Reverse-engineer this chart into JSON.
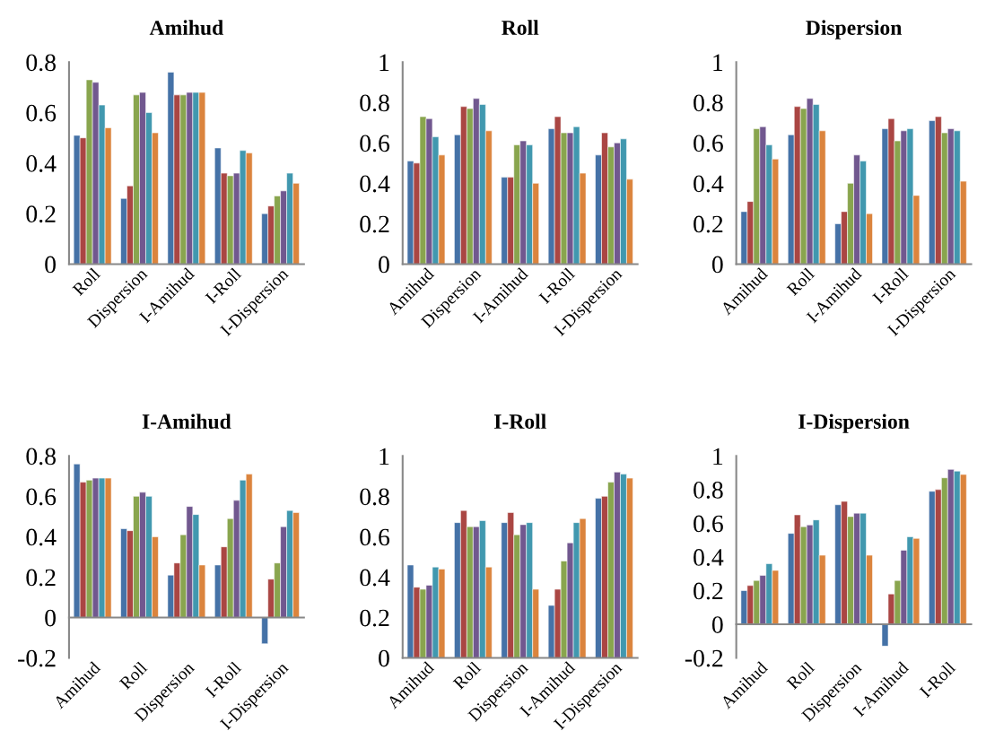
{
  "chart_data": [
    {
      "type": "bar",
      "title": "Amihud",
      "categories": [
        "Roll",
        "Dispersion",
        "I-Amihud",
        "I-Roll",
        "I-Dispersion"
      ],
      "ylim": [
        0,
        0.8
      ],
      "yticks": [
        0,
        0.2,
        0.4,
        0.6,
        0.8
      ],
      "grid": false,
      "series": [
        {
          "color": "#4572a7",
          "values": [
            0.51,
            0.26,
            0.76,
            0.46,
            0.2
          ]
        },
        {
          "color": "#aa4643",
          "values": [
            0.5,
            0.31,
            0.67,
            0.36,
            0.23
          ]
        },
        {
          "color": "#89a54e",
          "values": [
            0.73,
            0.67,
            0.67,
            0.35,
            0.27
          ]
        },
        {
          "color": "#71588f",
          "values": [
            0.72,
            0.68,
            0.68,
            0.36,
            0.29
          ]
        },
        {
          "color": "#4198af",
          "values": [
            0.63,
            0.6,
            0.68,
            0.45,
            0.36
          ]
        },
        {
          "color": "#db843d",
          "values": [
            0.54,
            0.52,
            0.68,
            0.44,
            0.32
          ]
        }
      ]
    },
    {
      "type": "bar",
      "title": "Roll",
      "categories": [
        "Amihud",
        "Dispersion",
        "I-Amihud",
        "I-Roll",
        "I-Dispersion"
      ],
      "ylim": [
        0,
        1
      ],
      "yticks": [
        0,
        0.2,
        0.4,
        0.6,
        0.8,
        1
      ],
      "grid": false,
      "series": [
        {
          "color": "#4572a7",
          "values": [
            0.51,
            0.64,
            0.43,
            0.67,
            0.54
          ]
        },
        {
          "color": "#aa4643",
          "values": [
            0.5,
            0.78,
            0.43,
            0.73,
            0.65
          ]
        },
        {
          "color": "#89a54e",
          "values": [
            0.73,
            0.77,
            0.59,
            0.65,
            0.58
          ]
        },
        {
          "color": "#71588f",
          "values": [
            0.72,
            0.82,
            0.61,
            0.65,
            0.6
          ]
        },
        {
          "color": "#4198af",
          "values": [
            0.63,
            0.79,
            0.59,
            0.68,
            0.62
          ]
        },
        {
          "color": "#db843d",
          "values": [
            0.54,
            0.66,
            0.4,
            0.45,
            0.42
          ]
        }
      ]
    },
    {
      "type": "bar",
      "title": "Dispersion",
      "categories": [
        "Amihud",
        "Roll",
        "I-Amihud",
        "I-Roll",
        "I-Dispersion"
      ],
      "ylim": [
        0,
        1
      ],
      "yticks": [
        0,
        0.2,
        0.4,
        0.6,
        0.8,
        1
      ],
      "grid": false,
      "series": [
        {
          "color": "#4572a7",
          "values": [
            0.26,
            0.64,
            0.2,
            0.67,
            0.71
          ]
        },
        {
          "color": "#aa4643",
          "values": [
            0.31,
            0.78,
            0.26,
            0.72,
            0.73
          ]
        },
        {
          "color": "#89a54e",
          "values": [
            0.67,
            0.77,
            0.4,
            0.61,
            0.65
          ]
        },
        {
          "color": "#71588f",
          "values": [
            0.68,
            0.82,
            0.54,
            0.66,
            0.67
          ]
        },
        {
          "color": "#4198af",
          "values": [
            0.59,
            0.79,
            0.51,
            0.67,
            0.66
          ]
        },
        {
          "color": "#db843d",
          "values": [
            0.52,
            0.66,
            0.25,
            0.34,
            0.41
          ]
        }
      ]
    },
    {
      "type": "bar",
      "title": "I-Amihud",
      "categories": [
        "Amihud",
        "Roll",
        "Dispersion",
        "I-Roll",
        "I-Dispersion"
      ],
      "ylim": [
        -0.2,
        0.8
      ],
      "yticks": [
        -0.2,
        0,
        0.2,
        0.4,
        0.6,
        0.8
      ],
      "grid": false,
      "series": [
        {
          "color": "#4572a7",
          "values": [
            0.76,
            0.44,
            0.21,
            0.26,
            -0.13
          ]
        },
        {
          "color": "#aa4643",
          "values": [
            0.67,
            0.43,
            0.27,
            0.35,
            0.19
          ]
        },
        {
          "color": "#89a54e",
          "values": [
            0.68,
            0.6,
            0.41,
            0.49,
            0.27
          ]
        },
        {
          "color": "#71588f",
          "values": [
            0.69,
            0.62,
            0.55,
            0.58,
            0.45
          ]
        },
        {
          "color": "#4198af",
          "values": [
            0.69,
            0.6,
            0.51,
            0.68,
            0.53
          ]
        },
        {
          "color": "#db843d",
          "values": [
            0.69,
            0.4,
            0.26,
            0.71,
            0.52
          ]
        }
      ]
    },
    {
      "type": "bar",
      "title": "I-Roll",
      "categories": [
        "Amihud",
        "Roll",
        "Dispersion",
        "I-Amihud",
        "I-Dispersion"
      ],
      "ylim": [
        0,
        1
      ],
      "yticks": [
        0,
        0.2,
        0.4,
        0.6,
        0.8,
        1
      ],
      "grid": false,
      "series": [
        {
          "color": "#4572a7",
          "values": [
            0.46,
            0.67,
            0.67,
            0.26,
            0.79
          ]
        },
        {
          "color": "#aa4643",
          "values": [
            0.35,
            0.73,
            0.72,
            0.34,
            0.8
          ]
        },
        {
          "color": "#89a54e",
          "values": [
            0.34,
            0.65,
            0.61,
            0.48,
            0.87
          ]
        },
        {
          "color": "#71588f",
          "values": [
            0.36,
            0.65,
            0.66,
            0.57,
            0.92
          ]
        },
        {
          "color": "#4198af",
          "values": [
            0.45,
            0.68,
            0.67,
            0.67,
            0.91
          ]
        },
        {
          "color": "#db843d",
          "values": [
            0.44,
            0.45,
            0.34,
            0.69,
            0.89
          ]
        }
      ]
    },
    {
      "type": "bar",
      "title": "I-Dispersion",
      "categories": [
        "Amihud",
        "Roll",
        "Dispersion",
        "I-Amihud",
        "I-Roll"
      ],
      "ylim": [
        -0.2,
        1
      ],
      "yticks": [
        -0.2,
        0,
        0.2,
        0.4,
        0.6,
        0.8,
        1
      ],
      "grid": false,
      "series": [
        {
          "color": "#4572a7",
          "values": [
            0.2,
            0.54,
            0.71,
            -0.13,
            0.79
          ]
        },
        {
          "color": "#aa4643",
          "values": [
            0.23,
            0.65,
            0.73,
            0.18,
            0.8
          ]
        },
        {
          "color": "#89a54e",
          "values": [
            0.26,
            0.58,
            0.64,
            0.26,
            0.87
          ]
        },
        {
          "color": "#71588f",
          "values": [
            0.29,
            0.59,
            0.66,
            0.44,
            0.92
          ]
        },
        {
          "color": "#4198af",
          "values": [
            0.36,
            0.62,
            0.66,
            0.52,
            0.91
          ]
        },
        {
          "color": "#db843d",
          "values": [
            0.32,
            0.41,
            0.41,
            0.51,
            0.89
          ]
        }
      ]
    }
  ]
}
